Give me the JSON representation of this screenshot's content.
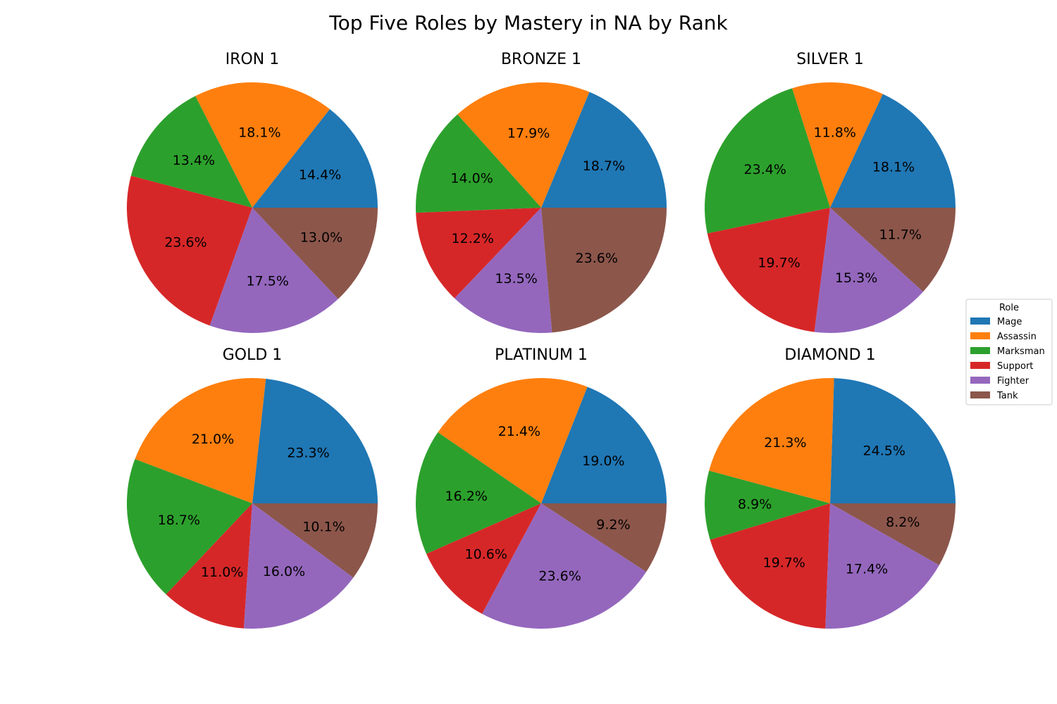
{
  "chart_data": {
    "type": "pie",
    "title": "Top Five Roles by Mastery in NA by Rank",
    "legend": {
      "title": "Role",
      "placement": "right",
      "entries": [
        "Mage",
        "Assassin",
        "Marksman",
        "Support",
        "Fighter",
        "Tank"
      ]
    },
    "colors": [
      "#1f77b4",
      "#ff7f0e",
      "#2ca02c",
      "#d62728",
      "#9467bd",
      "#8c564b"
    ],
    "pies": [
      {
        "title": "IRON 1",
        "values": [
          14.4,
          18.1,
          13.4,
          23.6,
          17.5,
          13.0
        ],
        "labels": [
          "14.4%",
          "18.1%",
          "13.4%",
          "23.6%",
          "17.5%",
          "13.0%"
        ]
      },
      {
        "title": "BRONZE 1",
        "values": [
          18.7,
          17.9,
          14.0,
          12.2,
          13.5,
          23.6
        ],
        "labels": [
          "18.7%",
          "17.9%",
          "14.0%",
          "12.2%",
          "13.5%",
          "23.6%"
        ]
      },
      {
        "title": "SILVER 1",
        "values": [
          18.1,
          11.8,
          23.4,
          19.7,
          15.3,
          11.7
        ],
        "labels": [
          "18.1%",
          "11.8%",
          "23.4%",
          "19.7%",
          "15.3%",
          "11.7%"
        ]
      },
      {
        "title": "GOLD 1",
        "values": [
          23.3,
          21.0,
          18.7,
          11.0,
          16.0,
          10.1
        ],
        "labels": [
          "23.3%",
          "21.0%",
          "18.7%",
          "11.0%",
          "16.0%",
          "10.1%"
        ]
      },
      {
        "title": "PLATINUM 1",
        "values": [
          19.0,
          21.4,
          16.2,
          10.6,
          23.6,
          9.2
        ],
        "labels": [
          "19.0%",
          "21.4%",
          "16.2%",
          "10.6%",
          "23.6%",
          "9.2%"
        ]
      },
      {
        "title": "DIAMOND 1",
        "values": [
          24.5,
          21.3,
          8.9,
          19.7,
          17.4,
          8.2
        ],
        "labels": [
          "24.5%",
          "21.3%",
          "8.9%",
          "19.7%",
          "17.4%",
          "8.2%"
        ]
      }
    ]
  }
}
